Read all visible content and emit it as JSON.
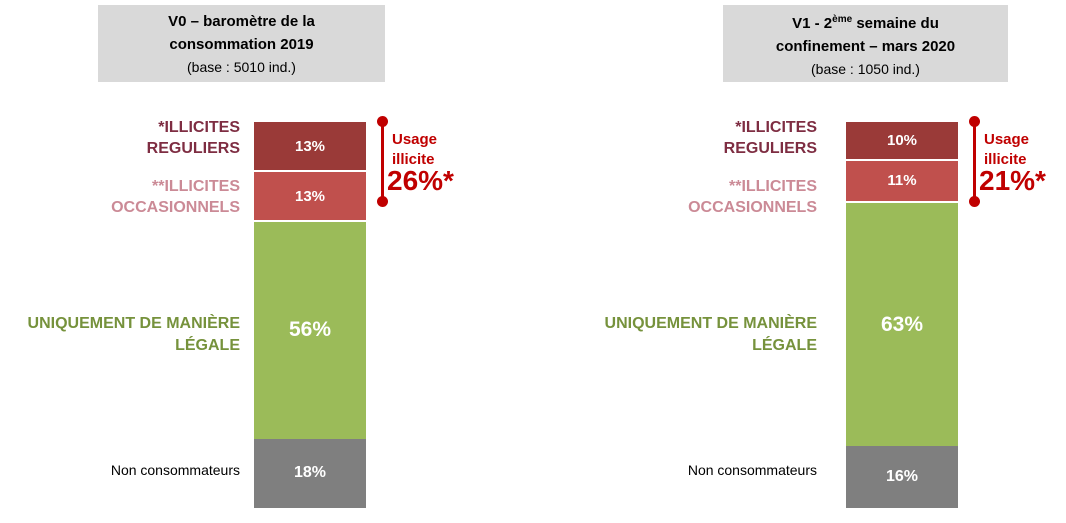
{
  "colors": {
    "header_bg": "#d9d9d9",
    "dark_red": "#9a3a38",
    "light_red": "#c0504d",
    "green": "#9bbb59",
    "gray": "#7f7f7f",
    "label_dark_red": "#7e2d42",
    "label_pink": "#cb8a96",
    "label_green": "#76923c",
    "label_black": "#000000",
    "annotation_red": "#c00000"
  },
  "charts": [
    {
      "header": {
        "line1": "V0 – baromètre de la",
        "line2": "consommation 2019",
        "base": "(base : 5010 ind.)"
      },
      "labels": {
        "reguliers_line1": "*ILLICITES",
        "reguliers_line2": "REGULIERS",
        "occasionnels_line1": "**ILLICITES",
        "occasionnels_line2": "OCCASIONNELS",
        "legale_line1": "UNIQUEMENT DE MANIÈRE",
        "legale_line2": "LÉGALE",
        "non_conso": "Non consommateurs"
      },
      "segments": [
        {
          "name": "illicites_reguliers",
          "value": 13,
          "label": "13%"
        },
        {
          "name": "illicites_occasionnels",
          "value": 13,
          "label": "13%"
        },
        {
          "name": "uniquement_legale",
          "value": 56,
          "label": "56%"
        },
        {
          "name": "non_consommateurs",
          "value": 18,
          "label": "18%"
        }
      ],
      "annotation": {
        "line1": "Usage",
        "line2": "illicite",
        "value": "26%*"
      }
    },
    {
      "header": {
        "line1_pre": "V1 - 2",
        "line1_sup": "ème",
        "line1_post": " semaine du",
        "line2": "confinement – mars 2020",
        "base": "(base : 1050 ind.)"
      },
      "labels": {
        "reguliers_line1": "*ILLICITES",
        "reguliers_line2": "REGULIERS",
        "occasionnels_line1": "**ILLICITES",
        "occasionnels_line2": "OCCASIONNELS",
        "legale_line1": "UNIQUEMENT DE MANIÈRE",
        "legale_line2": "LÉGALE",
        "non_conso": "Non consommateurs"
      },
      "segments": [
        {
          "name": "illicites_reguliers",
          "value": 10,
          "label": "10%"
        },
        {
          "name": "illicites_occasionnels",
          "value": 11,
          "label": "11%"
        },
        {
          "name": "uniquement_legale",
          "value": 63,
          "label": "63%"
        },
        {
          "name": "non_consommateurs",
          "value": 16,
          "label": "16%"
        }
      ],
      "annotation": {
        "line1": "Usage",
        "line2": "illicite",
        "value": "21%*"
      }
    }
  ],
  "chart_data": [
    {
      "type": "bar",
      "stacked": true,
      "orientation": "vertical",
      "title": "V0 – baromètre de la consommation 2019 (base : 5010 ind.)",
      "categories": [
        "*ILLICITES REGULIERS",
        "**ILLICITES OCCASIONNELS",
        "UNIQUEMENT DE MANIÈRE LÉGALE",
        "Non consommateurs"
      ],
      "values": [
        13,
        13,
        56,
        18
      ],
      "unit": "%",
      "ylim": [
        0,
        100
      ],
      "grid": false,
      "annotation": "Usage illicite 26%*",
      "segment_colors": [
        "#9a3a38",
        "#c0504d",
        "#9bbb59",
        "#7f7f7f"
      ]
    },
    {
      "type": "bar",
      "stacked": true,
      "orientation": "vertical",
      "title": "V1 - 2ème semaine du confinement – mars 2020 (base : 1050 ind.)",
      "categories": [
        "*ILLICITES REGULIERS",
        "**ILLICITES OCCASIONNELS",
        "UNIQUEMENT DE MANIÈRE LÉGALE",
        "Non consommateurs"
      ],
      "values": [
        10,
        11,
        63,
        16
      ],
      "unit": "%",
      "ylim": [
        0,
        100
      ],
      "grid": false,
      "annotation": "Usage illicite 21%*",
      "segment_colors": [
        "#9a3a38",
        "#c0504d",
        "#9bbb59",
        "#7f7f7f"
      ]
    }
  ]
}
